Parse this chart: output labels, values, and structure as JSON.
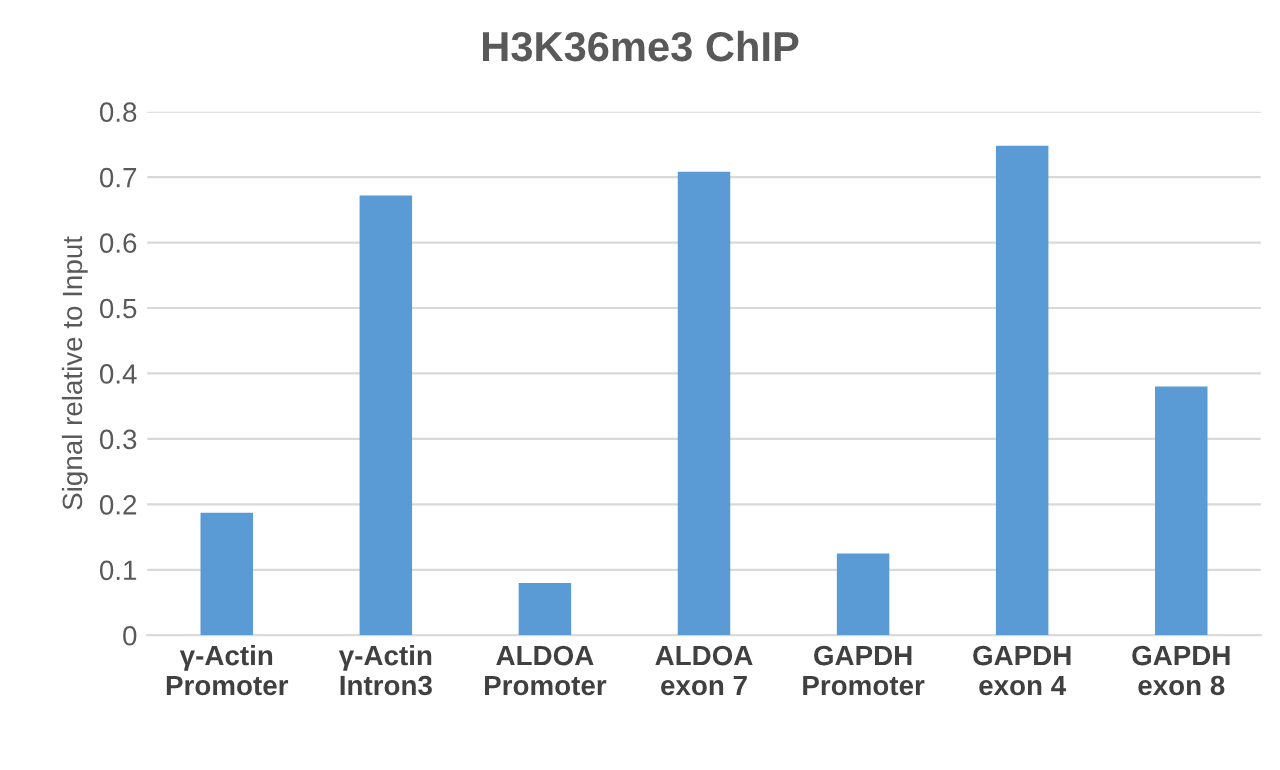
{
  "chart_data": {
    "type": "bar",
    "title": "H3K36me3 ChIP",
    "ylabel": "Signal relative to Input",
    "categories": [
      "γ-Actin\nPromoter",
      "γ-Actin\nIntron3",
      "ALDOA\nPromoter",
      "ALDOA\nexon 7",
      "GAPDH\nPromoter",
      "GAPDH\nexon 4",
      "GAPDH\nexon 8"
    ],
    "values": [
      0.187,
      0.672,
      0.08,
      0.708,
      0.125,
      0.748,
      0.38
    ],
    "color": "#5b9bd5",
    "ylim": [
      0,
      0.8
    ],
    "yticks": [
      0,
      0.1,
      0.2,
      0.3,
      0.4,
      0.5,
      0.6,
      0.7,
      0.8
    ],
    "grid": "y",
    "legend": false
  }
}
